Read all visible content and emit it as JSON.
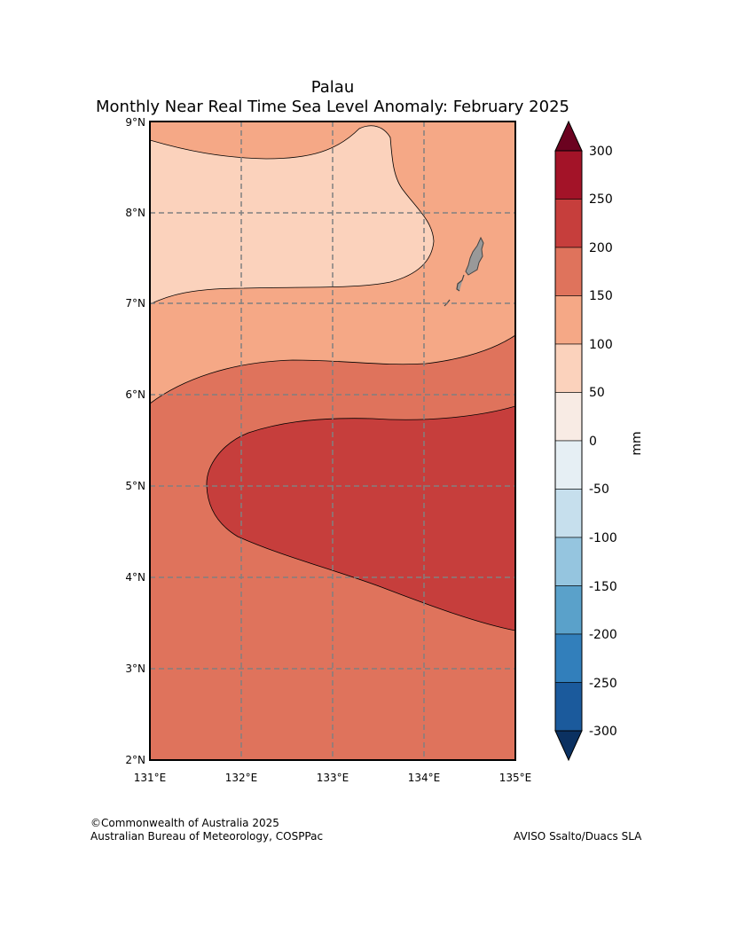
{
  "header": {
    "title": "Palau",
    "subtitle": "Monthly Near Real Time Sea Level Anomaly: February 2025"
  },
  "map": {
    "lat_ticks": [
      "9°N",
      "8°N",
      "7°N",
      "6°N",
      "5°N",
      "4°N",
      "3°N",
      "2°N"
    ],
    "lon_ticks": [
      "131°E",
      "132°E",
      "133°E",
      "134°E",
      "135°E"
    ],
    "extent": {
      "lon_min": 131,
      "lon_max": 135,
      "lat_min": 2,
      "lat_max": 9
    },
    "gridlines": true,
    "land_color": "#999999"
  },
  "colorbar": {
    "unit": "mm",
    "ticks": [
      "300",
      "250",
      "200",
      "150",
      "100",
      "50",
      "0",
      "-50",
      "-100",
      "-150",
      "-200",
      "-250",
      "-300"
    ],
    "colors_top_to_bottom": [
      "#a31328",
      "#c63e3c",
      "#df735c",
      "#f5a886",
      "#fbd2bc",
      "#f8ebe4",
      "#e6eff4",
      "#c6dfed",
      "#95c5df",
      "#5aa1ca",
      "#327fbb",
      "#1b5a9c"
    ],
    "over_color": "#6b0220",
    "under_color": "#0b3161"
  },
  "chart_data": {
    "type": "filled contour map",
    "title": "Palau",
    "subtitle": "Monthly Near Real Time Sea Level Anomaly: February 2025",
    "region": "Palau",
    "period": "February 2025",
    "x_range_lon": [
      131,
      135
    ],
    "y_range_lat": [
      2,
      9
    ],
    "levels_mm": [
      -300,
      -250,
      -200,
      -150,
      -100,
      -50,
      0,
      50,
      100,
      150,
      200,
      250,
      300
    ],
    "visible_bands_mm": [
      "50-100",
      "100-150",
      "150-200",
      "200-250"
    ]
  },
  "footer": {
    "credit_line1": "©Commonwealth of Australia 2025",
    "credit_line2": "Australian Bureau of Meteorology, COSPPac",
    "data_source": "AVISO Ssalto/Duacs SLA"
  }
}
